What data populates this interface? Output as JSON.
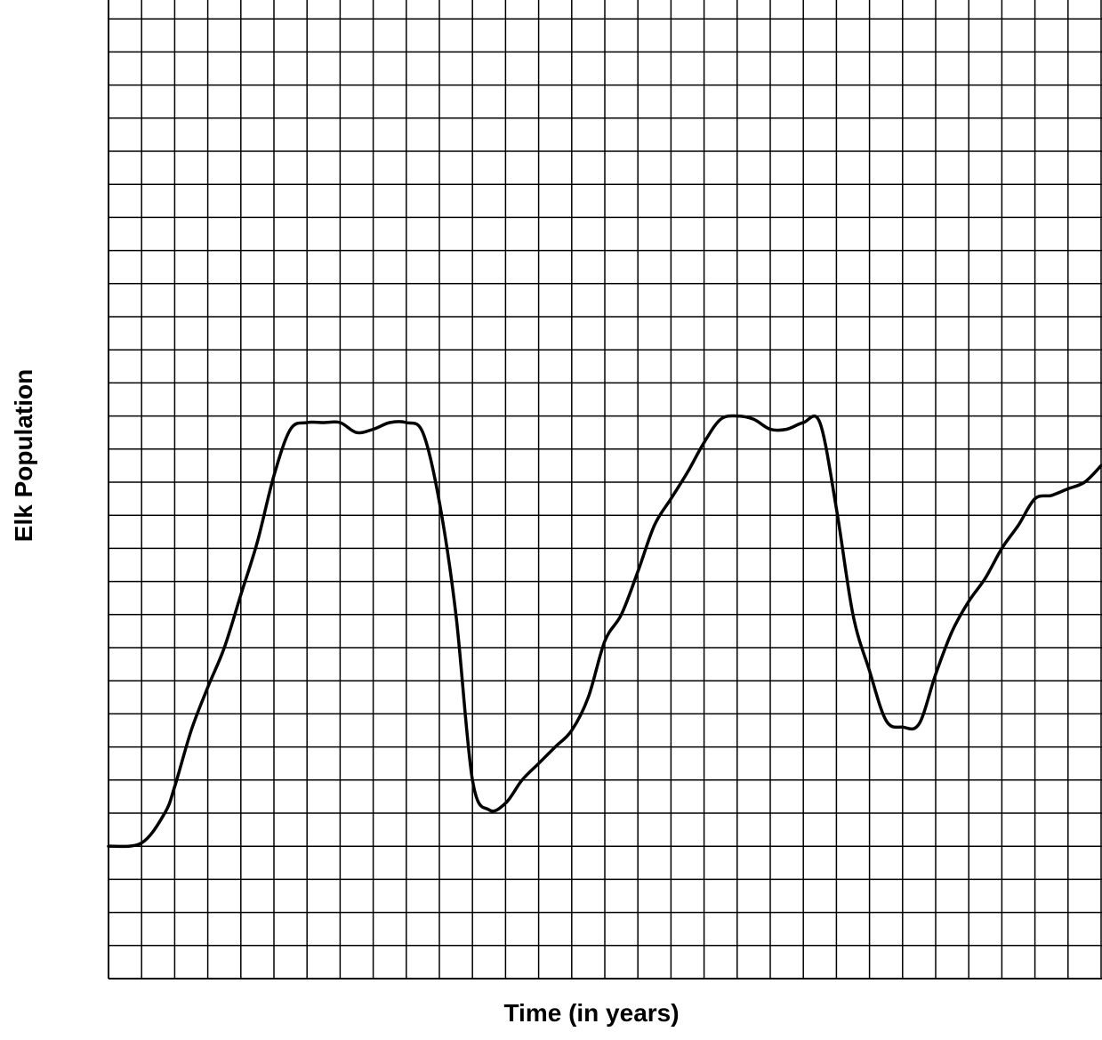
{
  "chart_data": {
    "type": "line",
    "title": "",
    "xlabel": "Time (in years)",
    "ylabel": "Elk Population",
    "grid": true,
    "legend": "none",
    "xlim": [
      0,
      30
    ],
    "ylim": [
      0,
      30
    ],
    "line_color": "#000000",
    "grid_color": "#000000",
    "series": [
      {
        "x": [
          0,
          1,
          1.7,
          2,
          2.5,
          3,
          3.5,
          4,
          4.5,
          5,
          5.5,
          6,
          6.5,
          7,
          7.5,
          8,
          8.5,
          9,
          9.5,
          10,
          10.5,
          11,
          11.5,
          12,
          12.5,
          13,
          13.5,
          14,
          14.5,
          15,
          15.5,
          16,
          16.5,
          17,
          17.5,
          18,
          18.5,
          19,
          19.5,
          20,
          20.5,
          21,
          21.5,
          22,
          22.5,
          23,
          23.5,
          24,
          24.5,
          25,
          25.5,
          26,
          26.5,
          27,
          27.5,
          28,
          28.5,
          29,
          29.5,
          30
        ],
        "y": [
          4,
          4.1,
          5,
          5.8,
          7.5,
          8.8,
          10,
          11.6,
          13.2,
          15.2,
          16.6,
          16.8,
          16.8,
          16.8,
          16.5,
          16.6,
          16.8,
          16.8,
          16.5,
          14.4,
          11,
          6,
          5.1,
          5.3,
          6,
          6.5,
          7,
          7.5,
          8.5,
          10.2,
          11,
          12.3,
          13.7,
          14.5,
          15.3,
          16.2,
          16.9,
          17,
          16.9,
          16.6,
          16.6,
          16.8,
          16.8,
          14.2,
          11,
          9.3,
          7.8,
          7.6,
          7.7,
          9.2,
          10.5,
          11.4,
          12.1,
          13,
          13.7,
          14.5,
          14.6,
          14.8,
          15,
          15.5
        ]
      }
    ]
  }
}
